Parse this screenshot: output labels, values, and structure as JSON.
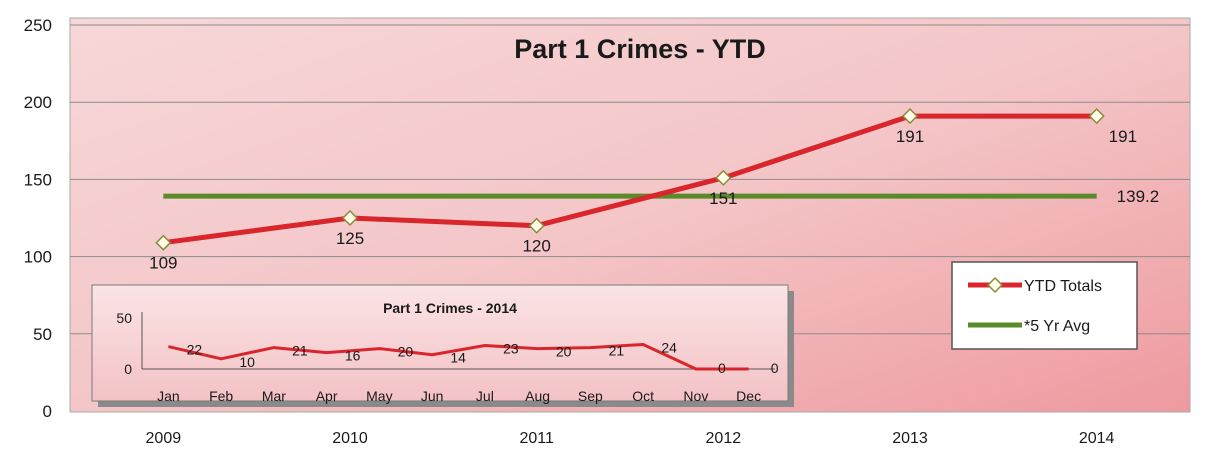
{
  "chart_data": [
    {
      "type": "line",
      "title": "Part 1 Crimes - YTD",
      "categories": [
        "2009",
        "2010",
        "2011",
        "2012",
        "2013",
        "2014"
      ],
      "ylim": [
        0,
        250
      ],
      "yticks": [
        0,
        50,
        100,
        150,
        200,
        250
      ],
      "grid": true,
      "legend": "right",
      "series": [
        {
          "name": "YTD Totals",
          "values": [
            109,
            125,
            120,
            151,
            191,
            191
          ],
          "labels": [
            "109",
            "125",
            "120",
            "151",
            "191",
            "191"
          ],
          "color": "#d9262c",
          "marker": "diamond"
        },
        {
          "name": "*5 Yr Avg",
          "values": [
            139.2,
            139.2,
            139.2,
            139.2,
            139.2,
            139.2
          ],
          "labels": [
            "",
            "",
            "",
            "",
            "",
            "139.2"
          ],
          "color": "#5a8a2a"
        }
      ],
      "legend_entries": [
        "YTD Totals",
        "*5 Yr Avg"
      ]
    },
    {
      "type": "line",
      "title": "Part 1 Crimes - 2014",
      "categories": [
        "Jan",
        "Feb",
        "Mar",
        "Apr",
        "May",
        "Jun",
        "Jul",
        "Aug",
        "Sep",
        "Oct",
        "Nov",
        "Dec"
      ],
      "ylim": [
        0,
        50
      ],
      "yticks": [
        0,
        50
      ],
      "series": [
        {
          "values": [
            22,
            10,
            21,
            16,
            20,
            14,
            23,
            20,
            21,
            24,
            0,
            0
          ],
          "labels": [
            "22",
            "10",
            "21",
            "16",
            "20",
            "14",
            "23",
            "20",
            "21",
            "24",
            "0",
            "0"
          ],
          "color": "#d9262c"
        }
      ]
    }
  ]
}
